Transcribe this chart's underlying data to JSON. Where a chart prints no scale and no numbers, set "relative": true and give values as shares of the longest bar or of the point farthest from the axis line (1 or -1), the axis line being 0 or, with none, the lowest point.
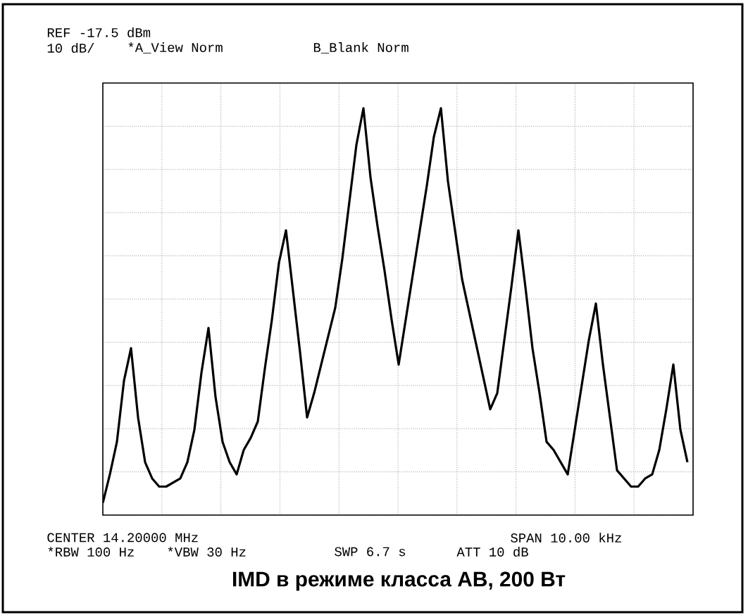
{
  "chart_data": {
    "type": "line",
    "relative": true,
    "title": "IMD  в режиме класса AB, 200 Вт",
    "annotations": [
      "REF -17.5 dBm",
      "10 dB/",
      "*A_View  Norm",
      "B_Blank Norm",
      "CENTER 14.20000 MHz",
      "SPAN 10.00 kHz",
      "*RBW 100 Hz",
      "*VBW 30 Hz",
      "SWP 6.7 s",
      "ATT 10 dB"
    ],
    "categories": [
      null,
      null,
      null,
      null,
      null,
      null,
      null,
      null,
      null,
      null,
      null,
      null,
      null,
      null,
      null,
      null,
      null,
      null,
      null,
      null,
      null,
      null,
      null,
      null,
      null,
      null,
      null,
      null,
      null,
      null,
      null,
      null,
      null,
      null,
      null,
      null,
      null,
      null,
      null,
      null,
      null,
      null,
      null,
      null,
      null,
      null,
      null,
      null,
      null,
      null,
      null,
      null,
      null,
      null,
      null,
      null,
      null,
      null,
      null,
      null,
      null,
      null,
      null,
      null,
      null,
      null,
      null,
      null,
      null,
      null,
      null,
      null,
      null,
      null,
      null,
      null,
      null,
      null,
      null,
      null,
      null,
      null,
      null,
      null
    ],
    "color": "#000000",
    "grid": true,
    "tick_labels": false,
    "marker": "none",
    "line_style": "solid",
    "values": [
      0.03,
      0.1,
      0.18,
      0.33,
      0.41,
      0.24,
      0.13,
      0.09,
      0.07,
      0.07,
      0.08,
      0.09,
      0.13,
      0.21,
      0.35,
      0.46,
      0.29,
      0.18,
      0.13,
      0.1,
      0.16,
      0.19,
      0.23,
      0.36,
      0.48,
      0.62,
      0.7,
      0.55,
      0.4,
      0.24,
      0.3,
      0.37,
      0.44,
      0.51,
      0.63,
      0.77,
      0.91,
      1,
      0.83,
      0.71,
      0.6,
      0.48,
      0.37,
      0.48,
      0.59,
      0.7,
      0.81,
      0.93,
      1,
      0.82,
      0.7,
      0.58,
      0.5,
      0.42,
      0.34,
      0.26,
      0.3,
      0.43,
      0.56,
      0.7,
      0.56,
      0.41,
      0.3,
      0.18,
      0.16,
      0.13,
      0.1,
      0.21,
      0.32,
      0.43,
      0.52,
      0.37,
      0.24,
      0.11,
      0.09,
      0.07,
      0.07,
      0.09,
      0.1,
      0.16,
      0.26,
      0.37,
      0.21,
      0.13
    ]
  }
}
